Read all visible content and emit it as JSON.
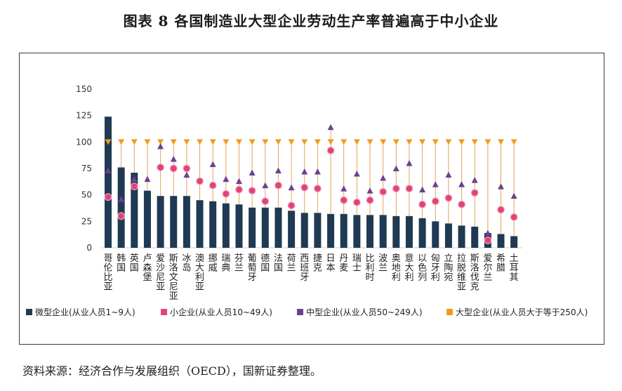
{
  "title": "图表 8  各国制造业大型企业劳动生产率普遍高于中小企业",
  "source": "资料来源：经济合作与发展组织（OECD），国新证券整理。",
  "chart_data": {
    "type": "bar",
    "ylim": [
      0,
      150
    ],
    "yticks": [
      0,
      25,
      50,
      75,
      100,
      125,
      150
    ],
    "categories": [
      "哥伦比亚",
      "韩国",
      "英国",
      "卢森堡",
      "爱沙尼亚",
      "斯洛文尼亚",
      "冰岛",
      "澳大利亚",
      "挪威",
      "瑞典",
      "芬兰",
      "葡萄牙",
      "德国",
      "法国",
      "荷兰",
      "西班牙",
      "捷克",
      "日本",
      "丹麦",
      "瑞士",
      "比利时",
      "波兰",
      "奥地利",
      "意大利",
      "以色列",
      "匈牙利",
      "立陶宛",
      "拉脱维亚",
      "斯洛伐克",
      "爱尔兰",
      "希腊",
      "土耳其"
    ],
    "series": [
      {
        "name": "微型企业(从业人员1~9人)",
        "color": "#1f3a52",
        "marker": "bar",
        "values": [
          124,
          76,
          71,
          54,
          49,
          49,
          49,
          45,
          44,
          42,
          41,
          38,
          38,
          38,
          35,
          33,
          33,
          32,
          32,
          31,
          31,
          31,
          30,
          30,
          28,
          25,
          23,
          21,
          20,
          14,
          13,
          11
        ]
      },
      {
        "name": "小企业(从业人员10~49人)",
        "color": "#e0437a",
        "marker": "circle",
        "values": [
          48,
          30,
          58,
          null,
          76,
          75,
          75,
          63,
          59,
          51,
          55,
          54,
          44,
          59,
          40,
          57,
          56,
          92,
          45,
          43,
          45,
          53,
          56,
          56,
          41,
          44,
          47,
          41,
          52,
          7,
          36,
          29
        ]
      },
      {
        "name": "中型企业(从业人员50~249人)",
        "color": "#6f3f8f",
        "marker": "triangle-up",
        "values": [
          73,
          46,
          65,
          65,
          96,
          84,
          69,
          null,
          79,
          65,
          63,
          71,
          59,
          73,
          57,
          72,
          72,
          114,
          56,
          70,
          54,
          66,
          75,
          80,
          55,
          60,
          69,
          60,
          64,
          14,
          58,
          49
        ]
      },
      {
        "name": "大型企业(从业人员大于等于250人)",
        "color": "#f29a1f",
        "marker": "triangle-down",
        "values": [
          100,
          100,
          100,
          100,
          100,
          100,
          100,
          100,
          100,
          100,
          100,
          100,
          100,
          100,
          100,
          100,
          100,
          100,
          100,
          100,
          100,
          100,
          100,
          100,
          100,
          100,
          100,
          100,
          100,
          100,
          100,
          100
        ]
      }
    ]
  }
}
